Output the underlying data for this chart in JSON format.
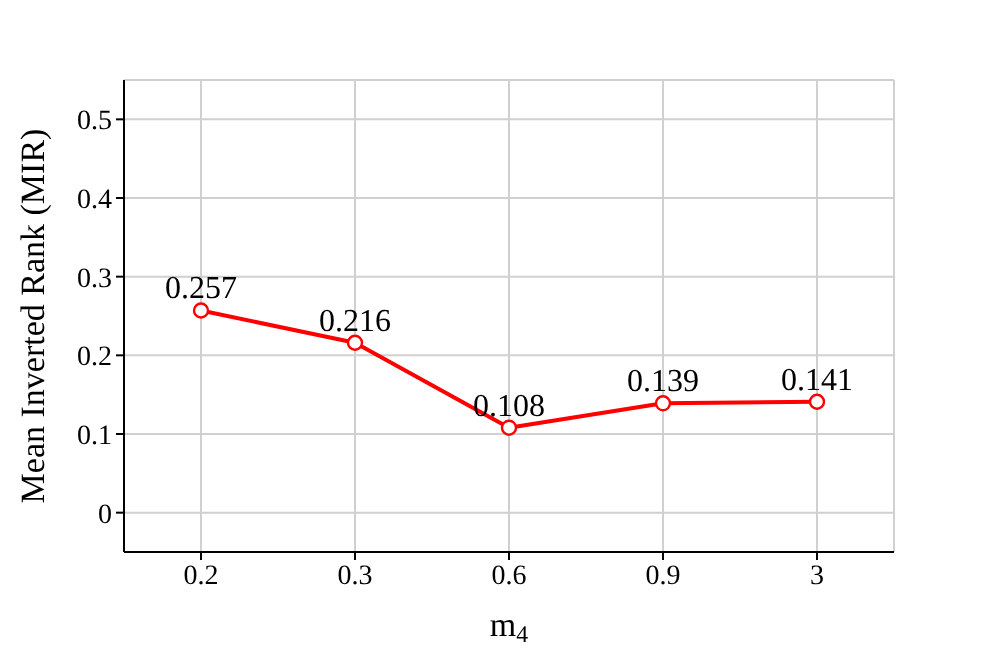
{
  "chart_data": {
    "type": "line",
    "xlabel": "m$_{4}$",
    "ylabel": "Mean Inverted Rank (MIR)",
    "categories": [
      "0.2",
      "0.3",
      "0.6",
      "0.9",
      "3"
    ],
    "series": [
      {
        "color": "#ff0000",
        "values": [
          0.257,
          0.216,
          0.108,
          0.139,
          0.141
        ]
      }
    ],
    "ylim": [
      -0.05,
      0.55
    ],
    "yticks": [
      0,
      0.1,
      0.2,
      0.3,
      0.4,
      0.5
    ],
    "grid": true,
    "marker": "circle",
    "line_style": "solid",
    "data_labels": true
  }
}
